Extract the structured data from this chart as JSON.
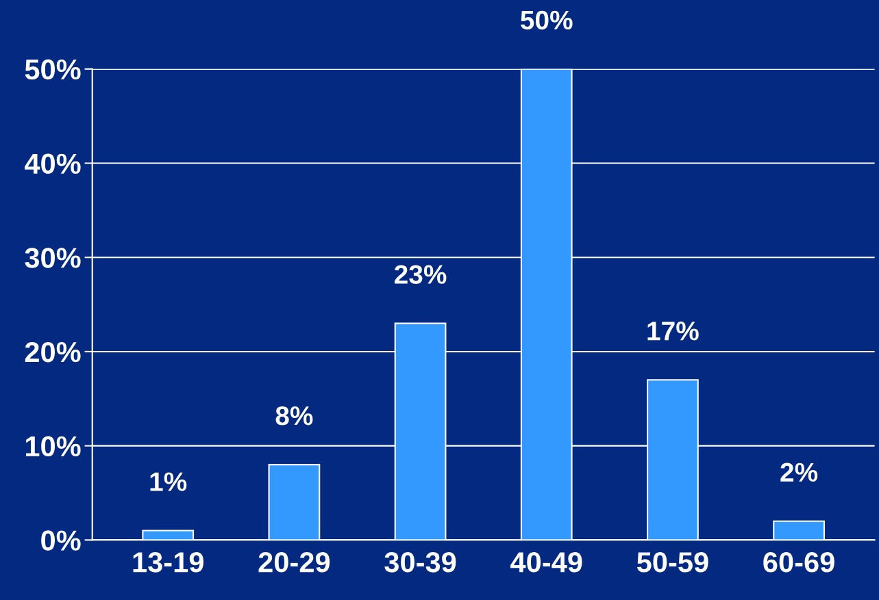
{
  "chart_data": {
    "type": "bar",
    "categories": [
      "13-19",
      "20-29",
      "30-39",
      "40-49",
      "50-59",
      "60-69"
    ],
    "values": [
      1,
      8,
      23,
      50,
      17,
      2
    ],
    "value_labels": [
      "1%",
      "8%",
      "23%",
      "50%",
      "17%",
      "2%"
    ],
    "color": "#3399ff",
    "ylim": [
      0,
      50
    ],
    "yticks": [
      {
        "value": 0,
        "label": "0%"
      },
      {
        "value": 10,
        "label": "10%"
      },
      {
        "value": 20,
        "label": "20%"
      },
      {
        "value": 30,
        "label": "30%"
      },
      {
        "value": 40,
        "label": "40%"
      },
      {
        "value": 50,
        "label": "50%"
      }
    ],
    "grid": "y",
    "legend": false
  }
}
